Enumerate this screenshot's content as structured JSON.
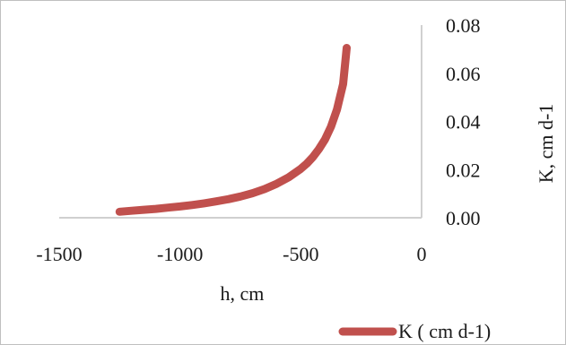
{
  "chart_data": {
    "type": "line",
    "xlabel": "h, cm",
    "ylabel": "K, cm d-1",
    "xlim": [
      -1500,
      0
    ],
    "ylim": [
      0.0,
      0.08
    ],
    "x_ticks": [
      "-1500",
      "-1000",
      "-500",
      "0"
    ],
    "x_tick_values": [
      -1500,
      -1000,
      -500,
      0
    ],
    "y_ticks": [
      "0.08",
      "0.06",
      "0.04",
      "0.02",
      "0.00"
    ],
    "y_tick_values": [
      0.08,
      0.06,
      0.04,
      0.02,
      0.0
    ],
    "y_axis_side": "right",
    "grid": false,
    "legend_position": "bottom-right",
    "series": [
      {
        "name": "K ( cm d-1)",
        "color": "#c0504d",
        "x": [
          -1250,
          -1200,
          -1150,
          -1100,
          -1050,
          -1000,
          -950,
          -900,
          -850,
          -800,
          -750,
          -700,
          -650,
          -600,
          -550,
          -500,
          -475,
          -450,
          -425,
          -400,
          -375,
          -350,
          -325,
          -310
        ],
        "y": [
          0.0025,
          0.0029,
          0.0033,
          0.0037,
          0.0042,
          0.0047,
          0.0053,
          0.006,
          0.0068,
          0.0077,
          0.0088,
          0.0102,
          0.0119,
          0.0141,
          0.0168,
          0.0203,
          0.0225,
          0.0252,
          0.0285,
          0.0325,
          0.0378,
          0.045,
          0.0555,
          0.0705
        ]
      }
    ]
  }
}
